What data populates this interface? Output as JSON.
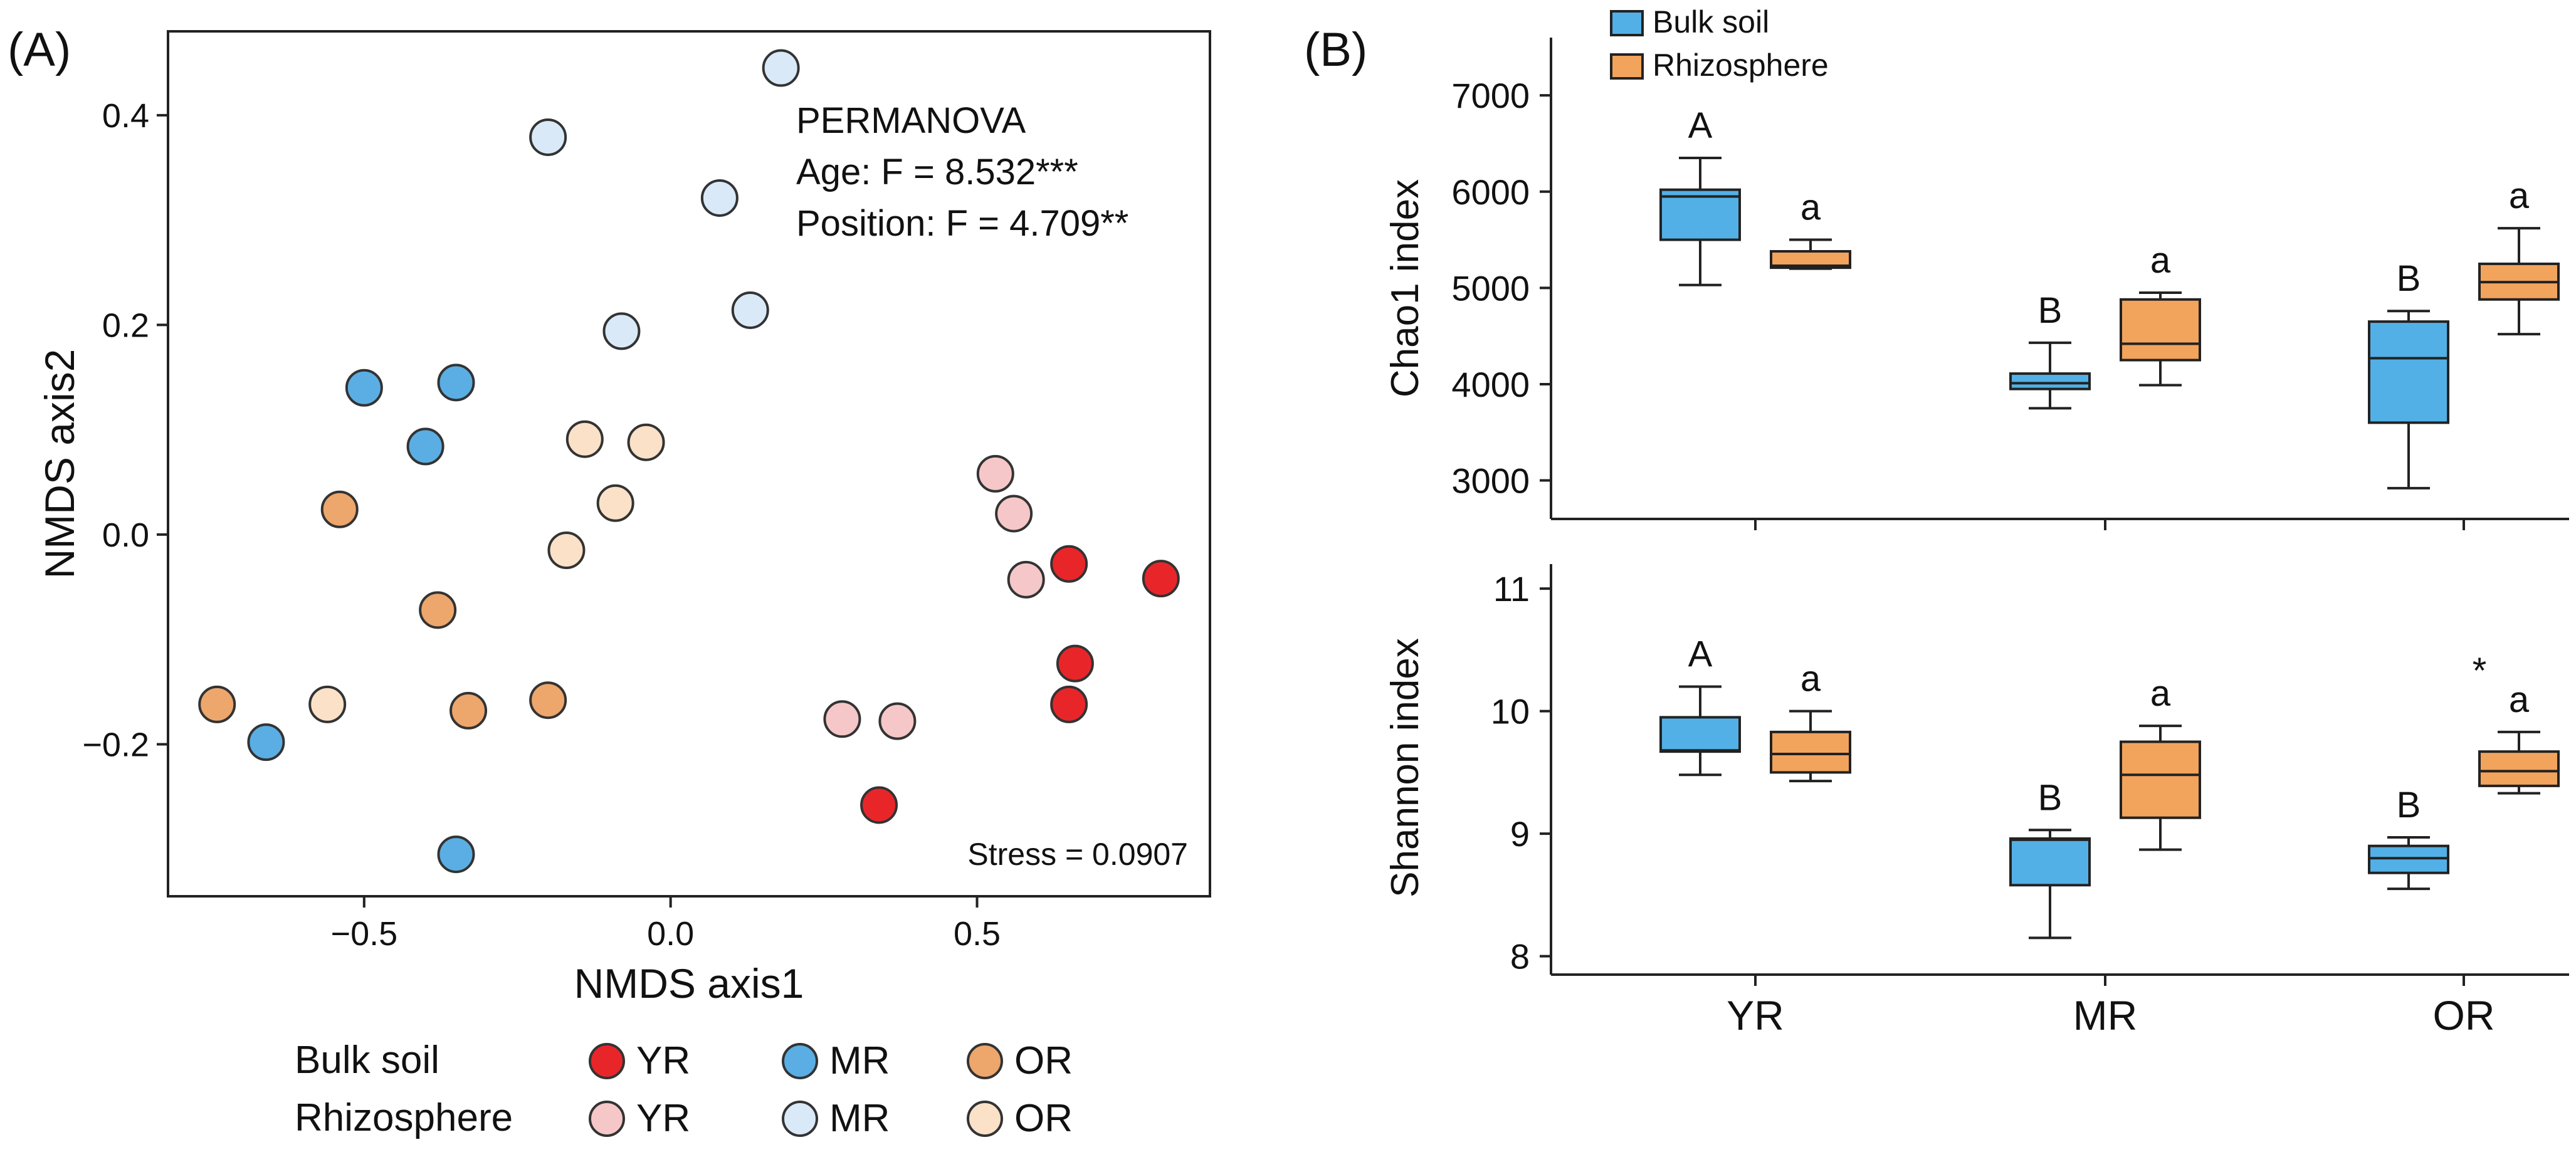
{
  "panel_labels": {
    "a": "(A)",
    "b": "(B)"
  },
  "colors": {
    "bulk_YR": "#e8262a",
    "bulk_MR": "#5aaee3",
    "bulk_OR": "#eda66b",
    "rhizo_YR": "#f6c7c8",
    "rhizo_MR": "#d9e9f8",
    "rhizo_OR": "#fbe1c7",
    "box_bulk": "#52b0e6",
    "box_rhizo": "#f2a35c"
  },
  "chart_data": [
    {
      "type": "scatter",
      "title": "",
      "xlabel": "NMDS axis1",
      "ylabel": "NMDS axis2",
      "xlim": [
        -0.82,
        0.88
      ],
      "ylim": [
        -0.345,
        0.48
      ],
      "xticks": [
        -0.5,
        0.0,
        0.5
      ],
      "xtick_labels": [
        "−0.5",
        "0.0",
        "0.5"
      ],
      "yticks": [
        -0.2,
        0.0,
        0.2,
        0.4
      ],
      "ytick_labels": [
        "−0.2",
        "0.0",
        "0.2",
        "0.4"
      ],
      "annotations": {
        "stats_title": "PERMANOVA",
        "age": "Age: F = 8.532***",
        "position": "Position: F = 4.709**",
        "stress": "Stress = 0.0907"
      },
      "legend": {
        "row_labels": [
          "Bulk soil",
          "Rhizosphere"
        ],
        "group_labels": [
          "YR",
          "MR",
          "OR"
        ]
      },
      "series": [
        {
          "name": "Bulk soil YR",
          "color_key": "bulk_YR",
          "x": [
            0.65,
            0.8,
            0.66,
            0.65,
            0.34
          ],
          "y": [
            -0.028,
            -0.042,
            -0.123,
            -0.162,
            -0.258
          ]
        },
        {
          "name": "Bulk soil MR",
          "color_key": "bulk_MR",
          "x": [
            -0.5,
            -0.35,
            -0.4,
            -0.66,
            -0.35
          ],
          "y": [
            0.14,
            0.145,
            0.084,
            -0.198,
            -0.305
          ]
        },
        {
          "name": "Bulk soil OR",
          "color_key": "bulk_OR",
          "x": [
            -0.54,
            -0.38,
            -0.74,
            -0.33,
            -0.2
          ],
          "y": [
            0.024,
            -0.072,
            -0.162,
            -0.168,
            -0.158
          ]
        },
        {
          "name": "Rhizosphere YR",
          "color_key": "rhizo_YR",
          "x": [
            0.53,
            0.56,
            0.58,
            0.28,
            0.37
          ],
          "y": [
            0.058,
            0.02,
            -0.043,
            -0.176,
            -0.178
          ]
        },
        {
          "name": "Rhizosphere MR",
          "color_key": "rhizo_MR",
          "x": [
            0.18,
            -0.2,
            0.08,
            -0.08,
            0.13
          ],
          "y": [
            0.445,
            0.379,
            0.321,
            0.194,
            0.214
          ]
        },
        {
          "name": "Rhizosphere OR",
          "color_key": "rhizo_OR",
          "x": [
            -0.14,
            -0.04,
            -0.09,
            -0.17,
            -0.56
          ],
          "y": [
            0.091,
            0.088,
            0.03,
            -0.015,
            -0.162
          ]
        }
      ]
    },
    {
      "type": "box",
      "title": "",
      "ylabel": "Chao1 index",
      "ylim": [
        2600,
        7600
      ],
      "yticks": [
        3000,
        4000,
        5000,
        6000,
        7000
      ],
      "ytick_labels": [
        "3000",
        "4000",
        "5000",
        "6000",
        "7000"
      ],
      "categories": [
        "YR",
        "MR",
        "OR"
      ],
      "legend": [
        "Bulk soil",
        "Rhizosphere"
      ],
      "series": [
        {
          "name": "Bulk soil",
          "color_key": "box_bulk",
          "boxes": [
            {
              "min": 5030,
              "q1": 5500,
              "median": 5950,
              "q3": 6020,
              "max": 6350
            },
            {
              "min": 3750,
              "q1": 3950,
              "median": 4010,
              "q3": 4110,
              "max": 4430
            },
            {
              "min": 2920,
              "q1": 3600,
              "median": 4270,
              "q3": 4650,
              "max": 4760
            }
          ],
          "letters": [
            "A",
            "B",
            "B"
          ]
        },
        {
          "name": "Rhizosphere",
          "color_key": "box_rhizo",
          "boxes": [
            {
              "min": 5200,
              "q1": 5210,
              "median": 5230,
              "q3": 5380,
              "max": 5500
            },
            {
              "min": 3990,
              "q1": 4250,
              "median": 4420,
              "q3": 4880,
              "max": 4950
            },
            {
              "min": 4520,
              "q1": 4880,
              "median": 5060,
              "q3": 5250,
              "max": 5620
            }
          ],
          "letters": [
            "a",
            "a",
            "a"
          ]
        }
      ]
    },
    {
      "type": "box",
      "title": "",
      "xlabel": "",
      "ylabel": "Shannon index",
      "ylim": [
        7.85,
        11.2
      ],
      "yticks": [
        8,
        9,
        10,
        11
      ],
      "ytick_labels": [
        "8",
        "9",
        "10",
        "11"
      ],
      "categories": [
        "YR",
        "MR",
        "OR"
      ],
      "series": [
        {
          "name": "Bulk soil",
          "color_key": "box_bulk",
          "boxes": [
            {
              "min": 9.48,
              "q1": 9.67,
              "median": 9.68,
              "q3": 9.95,
              "max": 10.2
            },
            {
              "min": 8.15,
              "q1": 8.58,
              "median": 8.95,
              "q3": 8.96,
              "max": 9.03
            },
            {
              "min": 8.55,
              "q1": 8.68,
              "median": 8.8,
              "q3": 8.9,
              "max": 8.97
            }
          ],
          "letters": [
            "A",
            "B",
            "B"
          ]
        },
        {
          "name": "Rhizosphere",
          "color_key": "box_rhizo",
          "boxes": [
            {
              "min": 9.43,
              "q1": 9.5,
              "median": 9.65,
              "q3": 9.83,
              "max": 10.0
            },
            {
              "min": 8.87,
              "q1": 9.13,
              "median": 9.48,
              "q3": 9.75,
              "max": 9.88
            },
            {
              "min": 9.33,
              "q1": 9.39,
              "median": 9.51,
              "q3": 9.67,
              "max": 9.83
            }
          ],
          "letters": [
            "a",
            "a",
            "a"
          ]
        }
      ],
      "significance": {
        "category": "OR",
        "symbol": "*"
      }
    }
  ]
}
